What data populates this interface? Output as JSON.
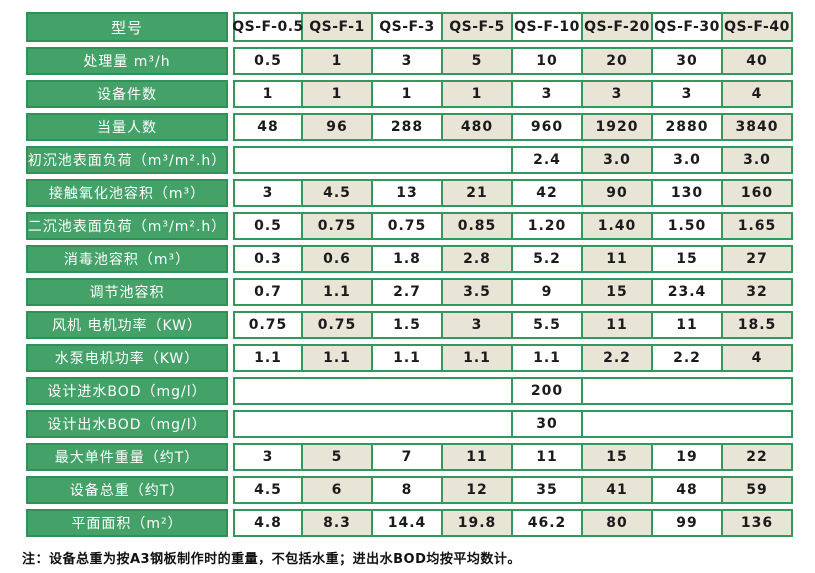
{
  "colors": {
    "green": "#44a269",
    "green_dark": "#2f9157",
    "border_green": "#33985e",
    "beige": "#e8e4d6",
    "text": "#1b1b1b"
  },
  "table": {
    "header": {
      "label": "型号",
      "models": [
        "QS-F-0.5",
        "QS-F-1",
        "QS-F-3",
        "QS-F-5",
        "QS-F-10",
        "QS-F-20",
        "QS-F-30",
        "QS-F-40"
      ]
    },
    "rows": [
      {
        "label": "处理量 m³/h",
        "cells": [
          {
            "t": "0.5"
          },
          {
            "t": "1"
          },
          {
            "t": "3"
          },
          {
            "t": "5"
          },
          {
            "t": "10"
          },
          {
            "t": "20"
          },
          {
            "t": "30"
          },
          {
            "t": "40"
          }
        ]
      },
      {
        "label": "设备件数",
        "cells": [
          {
            "t": "1"
          },
          {
            "t": "1"
          },
          {
            "t": "1"
          },
          {
            "t": "1"
          },
          {
            "t": "3"
          },
          {
            "t": "3"
          },
          {
            "t": "3"
          },
          {
            "t": "4"
          }
        ]
      },
      {
        "label": "当量人数",
        "cells": [
          {
            "t": "48"
          },
          {
            "t": "96"
          },
          {
            "t": "288"
          },
          {
            "t": "480"
          },
          {
            "t": "960"
          },
          {
            "t": "1920"
          },
          {
            "t": "2880"
          },
          {
            "t": "3840"
          }
        ]
      },
      {
        "label": "初沉池表面负荷（m³/m².h）",
        "cells": [
          {
            "t": "",
            "s": 4
          },
          {
            "t": "2.4"
          },
          {
            "t": "3.0"
          },
          {
            "t": "3.0"
          },
          {
            "t": "3.0"
          }
        ]
      },
      {
        "label": "接触氧化池容积（m³）",
        "cells": [
          {
            "t": "3"
          },
          {
            "t": "4.5"
          },
          {
            "t": "13"
          },
          {
            "t": "21"
          },
          {
            "t": "42"
          },
          {
            "t": "90"
          },
          {
            "t": "130"
          },
          {
            "t": "160"
          }
        ]
      },
      {
        "label": "二沉池表面负荷（m³/m².h）",
        "cells": [
          {
            "t": "0.5"
          },
          {
            "t": "0.75"
          },
          {
            "t": "0.75"
          },
          {
            "t": "0.85"
          },
          {
            "t": "1.20"
          },
          {
            "t": "1.40"
          },
          {
            "t": "1.50"
          },
          {
            "t": "1.65"
          }
        ]
      },
      {
        "label": "消毒池容积（m³）",
        "cells": [
          {
            "t": "0.3"
          },
          {
            "t": "0.6"
          },
          {
            "t": "1.8"
          },
          {
            "t": "2.8"
          },
          {
            "t": "5.2"
          },
          {
            "t": "11"
          },
          {
            "t": "15"
          },
          {
            "t": "27"
          }
        ]
      },
      {
        "label": "调节池容积",
        "cells": [
          {
            "t": "0.7"
          },
          {
            "t": "1.1"
          },
          {
            "t": "2.7"
          },
          {
            "t": "3.5"
          },
          {
            "t": "9"
          },
          {
            "t": "15"
          },
          {
            "t": "23.4"
          },
          {
            "t": "32"
          }
        ]
      },
      {
        "label": "风机 电机功率（KW）",
        "cells": [
          {
            "t": "0.75"
          },
          {
            "t": "0.75"
          },
          {
            "t": "1.5"
          },
          {
            "t": "3"
          },
          {
            "t": "5.5"
          },
          {
            "t": "11"
          },
          {
            "t": "11"
          },
          {
            "t": "18.5"
          }
        ]
      },
      {
        "label": "水泵电机功率（KW）",
        "cells": [
          {
            "t": "1.1"
          },
          {
            "t": "1.1"
          },
          {
            "t": "1.1"
          },
          {
            "t": "1.1"
          },
          {
            "t": "1.1"
          },
          {
            "t": "2.2"
          },
          {
            "t": "2.2"
          },
          {
            "t": "4"
          }
        ]
      },
      {
        "label": "设计进水BOD（mg/l）",
        "cells": [
          {
            "t": "",
            "s": 4
          },
          {
            "t": "200"
          },
          {
            "t": "",
            "s": 3
          }
        ]
      },
      {
        "label": "设计出水BOD（mg/l）",
        "cells": [
          {
            "t": "",
            "s": 4
          },
          {
            "t": "30"
          },
          {
            "t": "",
            "s": 3
          }
        ]
      },
      {
        "label": "最大单件重量（约T）",
        "cells": [
          {
            "t": "3"
          },
          {
            "t": "5"
          },
          {
            "t": "7"
          },
          {
            "t": "11"
          },
          {
            "t": "11"
          },
          {
            "t": "15"
          },
          {
            "t": "19"
          },
          {
            "t": "22"
          }
        ]
      },
      {
        "label": "设备总重（约T）",
        "cells": [
          {
            "t": "4.5"
          },
          {
            "t": "6"
          },
          {
            "t": "8"
          },
          {
            "t": "12"
          },
          {
            "t": "35"
          },
          {
            "t": "41"
          },
          {
            "t": "48"
          },
          {
            "t": "59"
          }
        ]
      },
      {
        "label": "平面面积（m²）",
        "cells": [
          {
            "t": "4.8"
          },
          {
            "t": "8.3"
          },
          {
            "t": "14.4"
          },
          {
            "t": "19.8"
          },
          {
            "t": "46.2"
          },
          {
            "t": "80"
          },
          {
            "t": "99"
          },
          {
            "t": "136"
          }
        ]
      }
    ]
  },
  "note": "注：设备总重为按A3钢板制作时的重量，不包括水重；进出水BOD均按平均数计。"
}
